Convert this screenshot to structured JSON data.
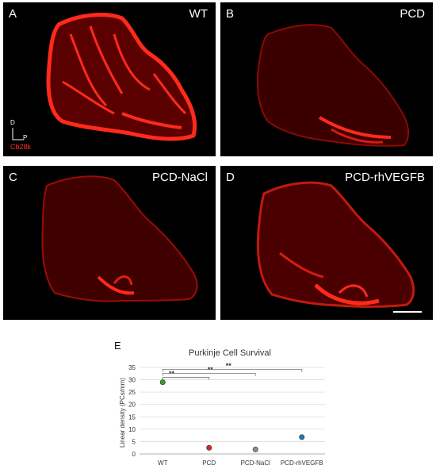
{
  "panels": [
    {
      "letter": "A",
      "condition": "WT"
    },
    {
      "letter": "B",
      "condition": "PCD"
    },
    {
      "letter": "C",
      "condition": "PCD-NaCl"
    },
    {
      "letter": "D",
      "condition": "PCD-rhVEGFB"
    }
  ],
  "orientation": {
    "dorsal": "D",
    "posterior": "P"
  },
  "stain_label": "Cb28k",
  "colors": {
    "stain": "#ff2a1a",
    "panel_bg": "#000000"
  },
  "panel_e_label": "E",
  "chart_data": {
    "type": "scatter",
    "title": "Purkinje Cell Survival",
    "ylabel": "Linear density (PCs/mm)",
    "xlabel": "",
    "categories": [
      "WT",
      "PCD",
      "PCD-NaCl",
      "PCD-rhVEGFB"
    ],
    "values": [
      29,
      2.5,
      1.8,
      6.8
    ],
    "colors": [
      "#2ca02c",
      "#d62728",
      "#8c8c8c",
      "#1f77b4"
    ],
    "ylim": [
      0,
      35
    ],
    "yticks": [
      0,
      5,
      10,
      15,
      20,
      25,
      30,
      35
    ],
    "grid": true,
    "significance": [
      {
        "from": 0,
        "to": 1,
        "label": "**"
      },
      {
        "from": 0,
        "to": 2,
        "label": "**"
      },
      {
        "from": 0,
        "to": 3,
        "label": "**"
      }
    ]
  }
}
